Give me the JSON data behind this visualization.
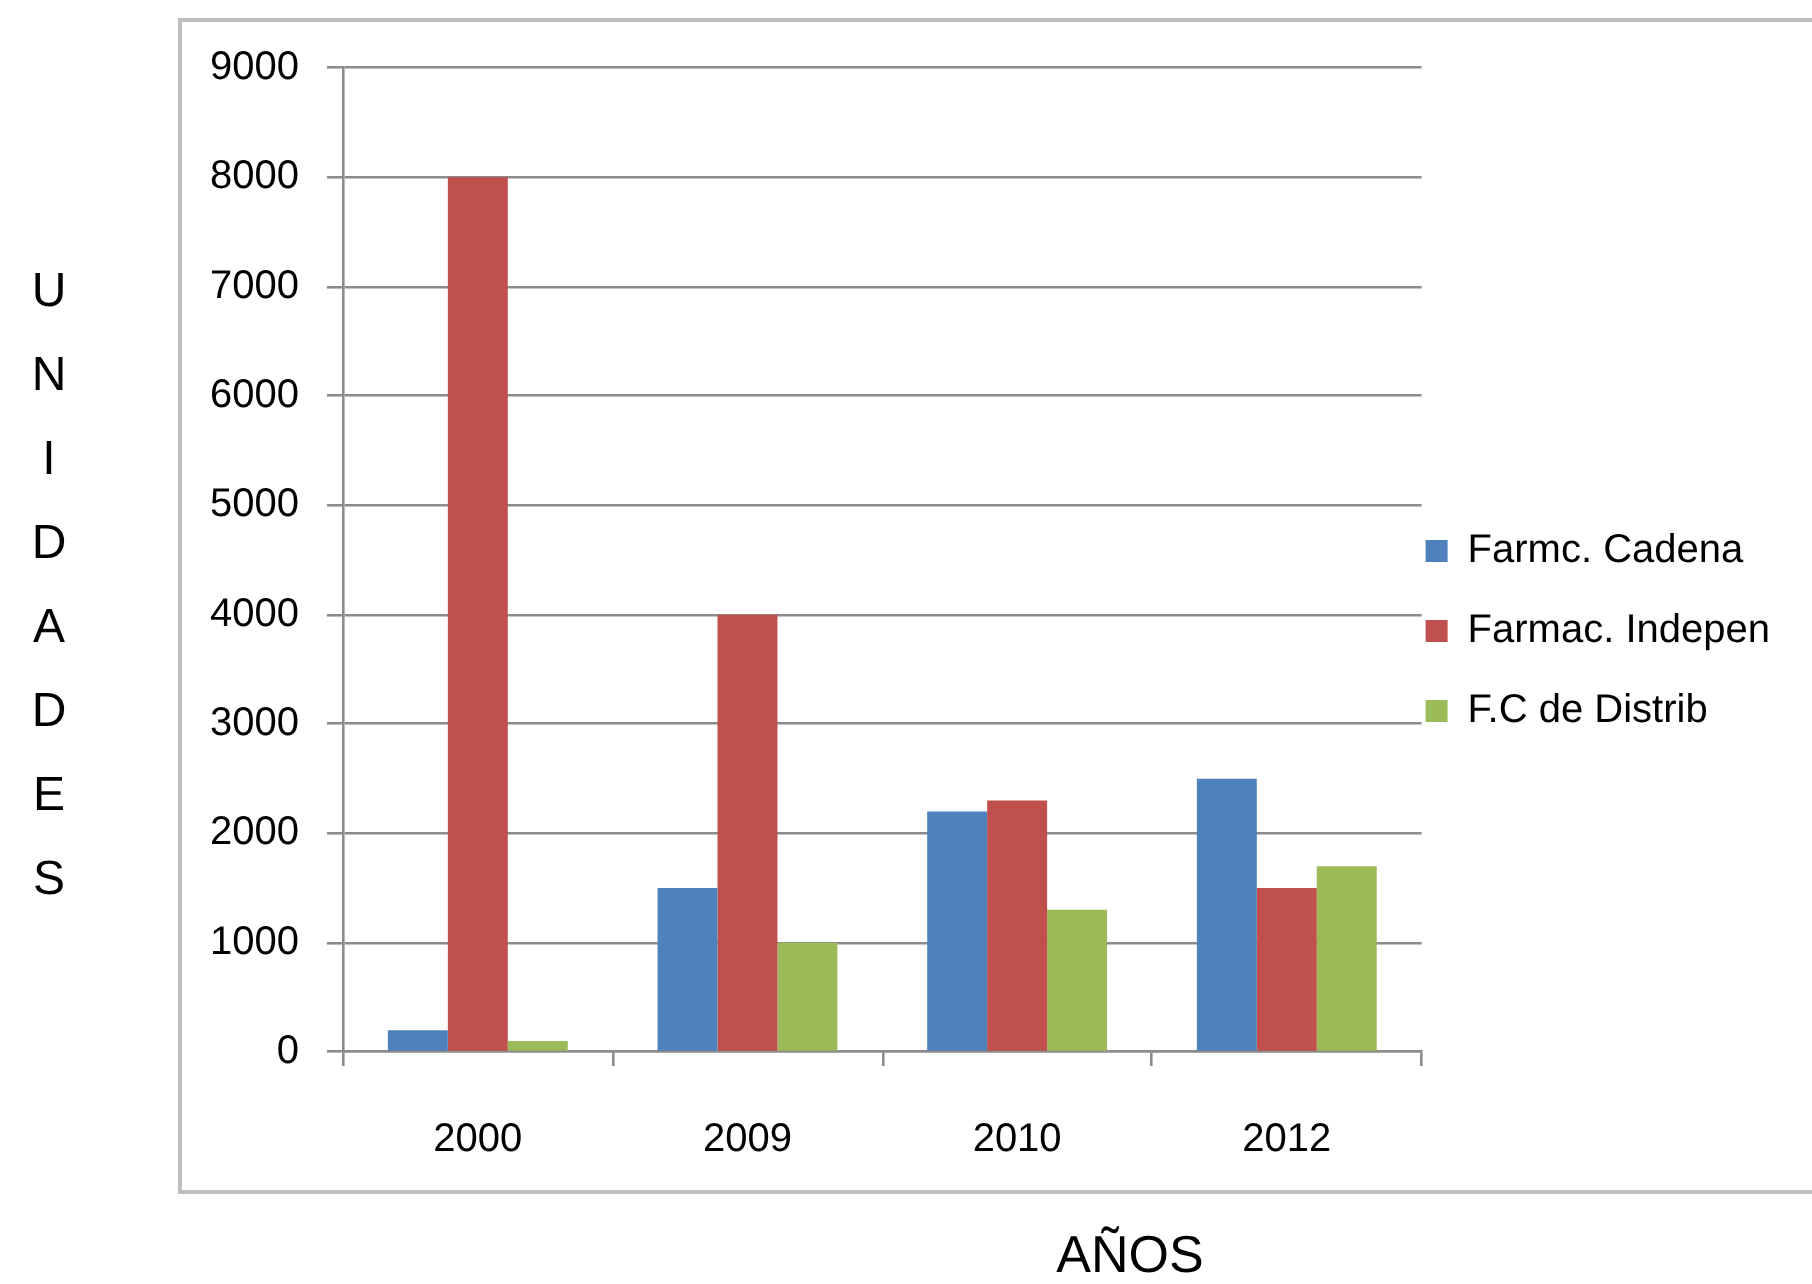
{
  "chart_data": {
    "type": "bar",
    "xlabel": "AÑOS",
    "ylabel": "UNIDADES",
    "categories": [
      "2000",
      "2009",
      "2010",
      "2012"
    ],
    "series": [
      {
        "name": "Farmc. Cadena",
        "color": "#4f81bd",
        "values": [
          200,
          1500,
          2200,
          2500
        ]
      },
      {
        "name": "Farmac. Indepen",
        "color": "#c0504d",
        "values": [
          8000,
          4000,
          2300,
          1500
        ]
      },
      {
        "name": "F.C de Distrib",
        "color": "#9bbb59",
        "values": [
          100,
          1000,
          1300,
          1700
        ]
      }
    ],
    "ylim": [
      0,
      9000
    ],
    "yticks": [
      0,
      1000,
      2000,
      3000,
      4000,
      5000,
      6000,
      7000,
      8000,
      9000
    ],
    "grid": "y",
    "legend": "right"
  }
}
